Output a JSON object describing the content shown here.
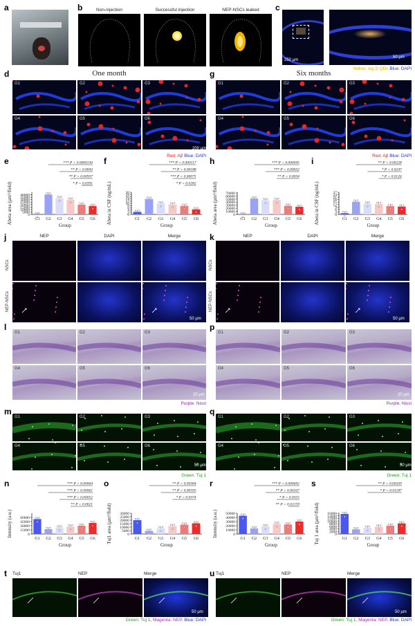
{
  "panels": [
    "a",
    "b",
    "c",
    "d",
    "e",
    "f",
    "g",
    "h",
    "i",
    "j",
    "k",
    "l",
    "p",
    "m",
    "q",
    "n",
    "o",
    "r",
    "s",
    "t",
    "u"
  ],
  "b": {
    "labels": [
      "Non-injection",
      "Successful injection",
      "NEP-NSCs leaked"
    ]
  },
  "c": {
    "scale_left": "250 µm",
    "scale_right": "50 µm",
    "caption_yellow": "Yellow: Ag₂S QDs",
    "caption_blue": "Blue: DAPI"
  },
  "d": {
    "title": "One month"
  },
  "g": {
    "title": "Six months"
  },
  "groups": [
    "G1",
    "G2",
    "G3",
    "G4",
    "G5",
    "G6"
  ],
  "ab_caption": {
    "red": "Red: Aβ",
    "blue": "Blue: DAPI"
  },
  "scale_200": "200 µm",
  "jk": {
    "cols": [
      "NEP",
      "DAPI",
      "Merge"
    ],
    "rows": [
      "NSCs",
      "NEP-NSCs"
    ],
    "scale": "50 µm"
  },
  "lp": {
    "caption": "Purple: Nissl",
    "scale": "20 µm"
  },
  "mq": {
    "caption": "Green: Tuj 1",
    "scale": "50 µm"
  },
  "tu": {
    "cols": [
      "Tuj1",
      "NEP",
      "Merge"
    ],
    "caption_green": "Green: Tuj 1,",
    "caption_magenta": "Magenta: NEP,",
    "caption_blue": "Blue: DAPI",
    "scale": "50 µm"
  },
  "chart_data": [
    {
      "panel": "e",
      "type": "bar",
      "ylabel": "Abeta area (µm²/field)",
      "xlabel": "Group",
      "categories": [
        "G1",
        "G2",
        "G3",
        "G4",
        "G5",
        "G6"
      ],
      "values": [
        150,
        40500,
        33000,
        30000,
        20000,
        17200
      ],
      "yticks": [
        0,
        5000,
        10000,
        15000,
        20000,
        25000,
        30000,
        35000,
        40000
      ],
      "ylim": [
        0,
        45000
      ],
      "sig": [
        {
          "from": "G2",
          "to": "G6",
          "text": "*** P = 0.0000136"
        },
        {
          "from": "G3",
          "to": "G6",
          "text": "** P = 0.0043"
        },
        {
          "from": "G4",
          "to": "G6",
          "text": "** P = 0.00937"
        },
        {
          "from": "G5",
          "to": "G6",
          "text": "* P = 0.0391"
        }
      ]
    },
    {
      "panel": "f",
      "type": "bar",
      "ylabel": "Abeta in CSF (ng/mL)",
      "xlabel": "Group",
      "categories": [
        "G1",
        "G2",
        "G3",
        "G4",
        "G5",
        "G6"
      ],
      "values": [
        2.3,
        14,
        9.8,
        9,
        7.7,
        4.6
      ],
      "yticks": [
        0,
        2,
        4,
        6,
        8,
        10,
        12,
        14,
        16,
        18,
        20
      ],
      "ylim": [
        0,
        20
      ],
      "sig": [
        {
          "from": "G2",
          "to": "G6",
          "text": "*** P = 0.000117"
        },
        {
          "from": "G3",
          "to": "G6",
          "text": "** P = 0.00188"
        },
        {
          "from": "G4",
          "to": "G6",
          "text": "*** P = 0.00075"
        },
        {
          "from": "G5",
          "to": "G6",
          "text": "* P = 0.0282"
        }
      ]
    },
    {
      "panel": "h",
      "type": "bar",
      "ylabel": "Abeta area (µm²/field)",
      "xlabel": "Group",
      "categories": [
        "G1",
        "G2",
        "G3",
        "G4",
        "G5",
        "G6"
      ],
      "values": [
        300,
        52000,
        46000,
        47000,
        28000,
        25000
      ],
      "yticks": [
        0,
        10000,
        20000,
        30000,
        40000,
        50000,
        60000,
        70000
      ],
      "ylim": [
        0,
        72000
      ],
      "sig": [
        {
          "from": "G2",
          "to": "G6",
          "text": "*** P = 0.000045"
        },
        {
          "from": "G3",
          "to": "G6",
          "text": "*** P = 0.00032"
        },
        {
          "from": "G4",
          "to": "G6",
          "text": "** P = 0.0034"
        }
      ]
    },
    {
      "panel": "i",
      "type": "bar",
      "ylabel": "Abeta in CSF (ng/mL)",
      "xlabel": "Group",
      "categories": [
        "G1",
        "G2",
        "G3",
        "G4",
        "G5",
        "G6"
      ],
      "values": [
        1.5,
        15.5,
        13.2,
        12.8,
        10.2,
        9.6
      ],
      "yticks": [
        0,
        3,
        6,
        9,
        12,
        15,
        18,
        21,
        24,
        27
      ],
      "ylim": [
        0,
        27
      ],
      "sig": [
        {
          "from": "G2",
          "to": "G6",
          "text": "** P = 0.00228"
        },
        {
          "from": "G3",
          "to": "G6",
          "text": "* P = 0.0247"
        },
        {
          "from": "G4",
          "to": "G6",
          "text": "* P = 0.0126"
        }
      ]
    },
    {
      "panel": "n",
      "type": "bar",
      "ylabel": "Intensity (a.u.)",
      "xlabel": "Group",
      "categories": [
        "G1",
        "G2",
        "G3",
        "G4",
        "G5",
        "G6"
      ],
      "values": [
        54000,
        17500,
        24000,
        27000,
        30000,
        40000
      ],
      "yticks": [
        0,
        15000,
        30000,
        45000,
        60000
      ],
      "ylim": [
        0,
        75000
      ],
      "sig": [
        {
          "from": "G1",
          "to": "G6",
          "text": "*** P = 0.00064"
        },
        {
          "from": "G2",
          "to": "G6",
          "text": "*** P = 0.00061"
        },
        {
          "from": "G3",
          "to": "G6",
          "text": "*** P = 0.00052"
        },
        {
          "from": "G4",
          "to": "G6",
          "text": "** P = 0.0021"
        }
      ]
    },
    {
      "panel": "o",
      "type": "bar",
      "ylabel": "Tuj1 area (µm²/field)",
      "xlabel": "Group",
      "categories": [
        "G1",
        "G2",
        "G3",
        "G4",
        "G5",
        "G6"
      ],
      "values": [
        20000,
        4500,
        8200,
        11500,
        13500,
        15500
      ],
      "yticks": [
        0,
        5000,
        10000,
        15000,
        20000,
        25000,
        30000
      ],
      "ylim": [
        0,
        30000
      ],
      "sig": [
        {
          "from": "G2",
          "to": "G6",
          "text": "** P = 0.00304"
        },
        {
          "from": "G3",
          "to": "G6",
          "text": "** P = 0.00595"
        },
        {
          "from": "G4",
          "to": "G6",
          "text": "* P = 0.0374"
        }
      ]
    },
    {
      "panel": "r",
      "type": "bar",
      "ylabel": "Intensity (a.u.)",
      "xlabel": "Group",
      "categories": [
        "G1",
        "G2",
        "G3",
        "G4",
        "G5",
        "G6"
      ],
      "values": [
        44000,
        13500,
        18500,
        24500,
        23000,
        30000
      ],
      "yticks": [
        0,
        10000,
        20000,
        30000,
        40000,
        50000
      ],
      "ylim": [
        0,
        50000
      ],
      "sig": [
        {
          "from": "G2",
          "to": "G6",
          "text": "*** P = 0.000692"
        },
        {
          "from": "G3",
          "to": "G6",
          "text": "** P = 0.00167"
        },
        {
          "from": "G4",
          "to": "G6",
          "text": "* P = 0.0355"
        },
        {
          "from": "G5",
          "to": "G6",
          "text": "** P = 0.02159"
        }
      ]
    },
    {
      "panel": "s",
      "type": "bar",
      "ylabel": "Tuj 1 area (µm²/field)",
      "xlabel": "Group",
      "categories": [
        "G1",
        "G2",
        "G3",
        "G4",
        "G5",
        "G6"
      ],
      "values": [
        15500,
        3600,
        4800,
        5700,
        6400,
        8200
      ],
      "yticks": [
        0,
        2000,
        4000,
        6000,
        8000,
        10000,
        12000,
        14000,
        16000
      ],
      "ylim": [
        0,
        16000
      ],
      "sig": [
        {
          "from": "G2",
          "to": "G6",
          "text": "** P = 0.00269"
        },
        {
          "from": "G3",
          "to": "G6",
          "text": "* P = 0.01187"
        }
      ]
    }
  ],
  "bar_colors": [
    "#4b58f0",
    "#9aa2f7",
    "#d9dcfa",
    "#f7c8c8",
    "#f07a7a",
    "#ef2a2a"
  ]
}
